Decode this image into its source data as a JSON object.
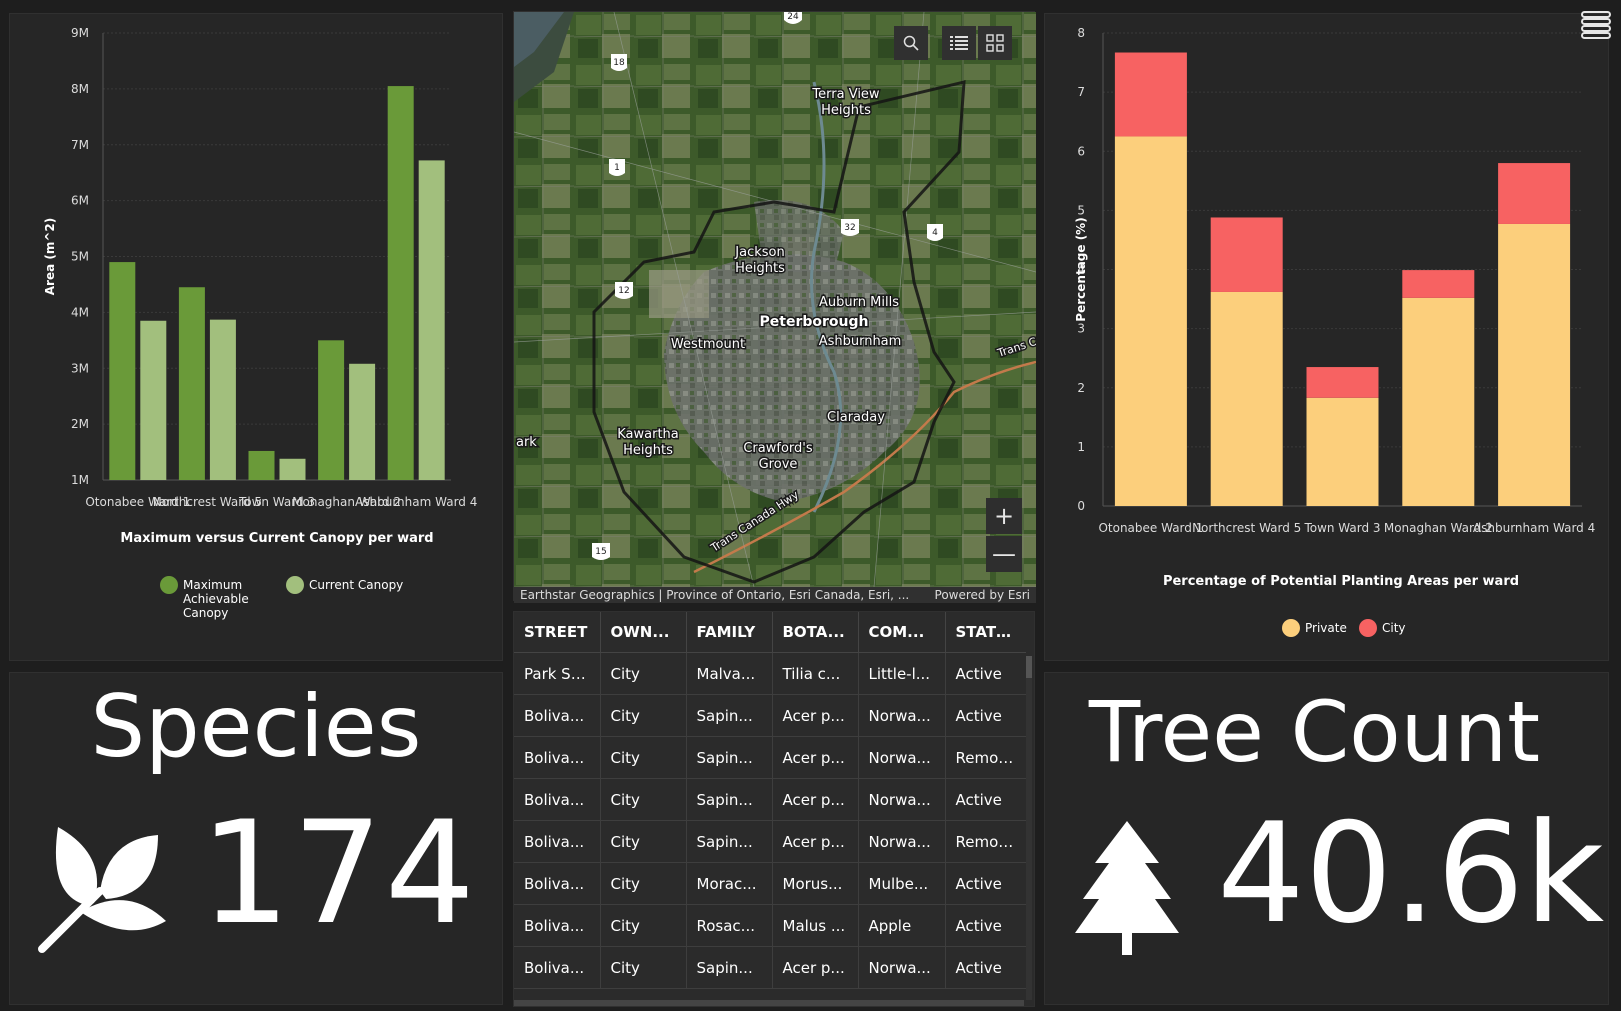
{
  "canopy_chart": {
    "chart_data": {
      "type": "bar",
      "title": "Maximum versus Current Canopy per ward",
      "xlabel": "",
      "ylabel": "Area (m^2)",
      "categories": [
        "Otonabee Ward 1",
        "Northcrest Ward 5",
        "Town Ward 3",
        "Monaghan Ward 2",
        "Ashburnham Ward 4"
      ],
      "ylim": [
        1000000,
        9000000
      ],
      "yticks": [
        "1M",
        "2M",
        "3M",
        "4M",
        "5M",
        "6M",
        "7M",
        "8M",
        "9M"
      ],
      "series": [
        {
          "name": "Maximum Achievable Canopy",
          "color": "#6a9a39",
          "values": [
            4900000,
            4450000,
            1520000,
            3500000,
            8050000
          ]
        },
        {
          "name": "Current Canopy",
          "color": "#a2bf7d",
          "values": [
            3850000,
            3870000,
            1380000,
            3080000,
            6720000
          ]
        }
      ],
      "grid": true,
      "legend": "bottom"
    }
  },
  "planting_chart": {
    "chart_data": {
      "type": "bar",
      "stacked": true,
      "title": "Percentage of Potential Planting Areas per ward",
      "xlabel": "",
      "ylabel": "Percentage (%)",
      "categories": [
        "Otonabee Ward 1",
        "Northcrest Ward 5",
        "Town Ward 3",
        "Monaghan Ward 2",
        "Ashburnham Ward 4"
      ],
      "ylim": [
        0,
        8
      ],
      "yticks": [
        "0",
        "1",
        "2",
        "3",
        "4",
        "5",
        "6",
        "7",
        "8"
      ],
      "series": [
        {
          "name": "Private",
          "color": "#fccf7c",
          "values": [
            6.25,
            3.62,
            1.83,
            3.52,
            4.77
          ]
        },
        {
          "name": "City",
          "color": "#f76262",
          "values": [
            1.42,
            1.26,
            0.52,
            0.47,
            1.03
          ]
        }
      ],
      "grid": true,
      "legend": "bottom"
    }
  },
  "map": {
    "labels": {
      "terra_view": "Terra View",
      "heights_1": "Heights",
      "jackson": "Jackson",
      "heights_2": "Heights",
      "auburn_mills": "Auburn Mills",
      "peterborough": "Peterborough",
      "westmount": "Westmount",
      "ashburnham": "Ashburnham",
      "clarady": "Claraday",
      "kawartha": "Kawartha",
      "heights_3": "Heights",
      "crawfords": "Crawford's",
      "grove": "Grove",
      "trans_canada": "Trans Canada Hwy",
      "trans_canada_2": "Trans C",
      "ark": "ark"
    },
    "route_shields": [
      "24",
      "18",
      "1",
      "32",
      "4",
      "12",
      "15"
    ],
    "attribution_left": "Earthstar Geographics | Province of Ontario, Esri Canada, Esri, ...",
    "attribution_right": "Powered by Esri",
    "zoom_in": "+",
    "zoom_out": "—",
    "search_icon": "search-icon",
    "legend_icon": "list-icon",
    "basemap_icon": "grid-icon"
  },
  "table": {
    "columns": [
      "STREET",
      "OWN...",
      "FAMILY",
      "BOTA...",
      "COM...",
      "STATUS"
    ],
    "rows": [
      [
        "Park St...",
        "City",
        "Malva...",
        "Tilia c...",
        "Little-l...",
        "Active"
      ],
      [
        "Boliva...",
        "City",
        "Sapin...",
        "Acer p...",
        "Norwa...",
        "Active"
      ],
      [
        "Boliva...",
        "City",
        "Sapin...",
        "Acer p...",
        "Norwa...",
        "Removed"
      ],
      [
        "Boliva...",
        "City",
        "Sapin...",
        "Acer p...",
        "Norwa...",
        "Active"
      ],
      [
        "Boliva...",
        "City",
        "Sapin...",
        "Acer p...",
        "Norwa...",
        "Removed"
      ],
      [
        "Boliva...",
        "City",
        "Morac...",
        "Morus...",
        "Mulbe...",
        "Active"
      ],
      [
        "Boliva...",
        "City",
        "Rosac...",
        "Malus ...",
        "Apple",
        "Active"
      ],
      [
        "Boliva...",
        "City",
        "Sapin...",
        "Acer p...",
        "Norwa...",
        "Active"
      ]
    ]
  },
  "species": {
    "title": "Species",
    "value": "174",
    "icon": "leaf-icon"
  },
  "tree_count": {
    "title": "Tree Count",
    "value": "40.6k",
    "icon": "tree-icon"
  },
  "menu_icon": "hamburger-menu-icon"
}
